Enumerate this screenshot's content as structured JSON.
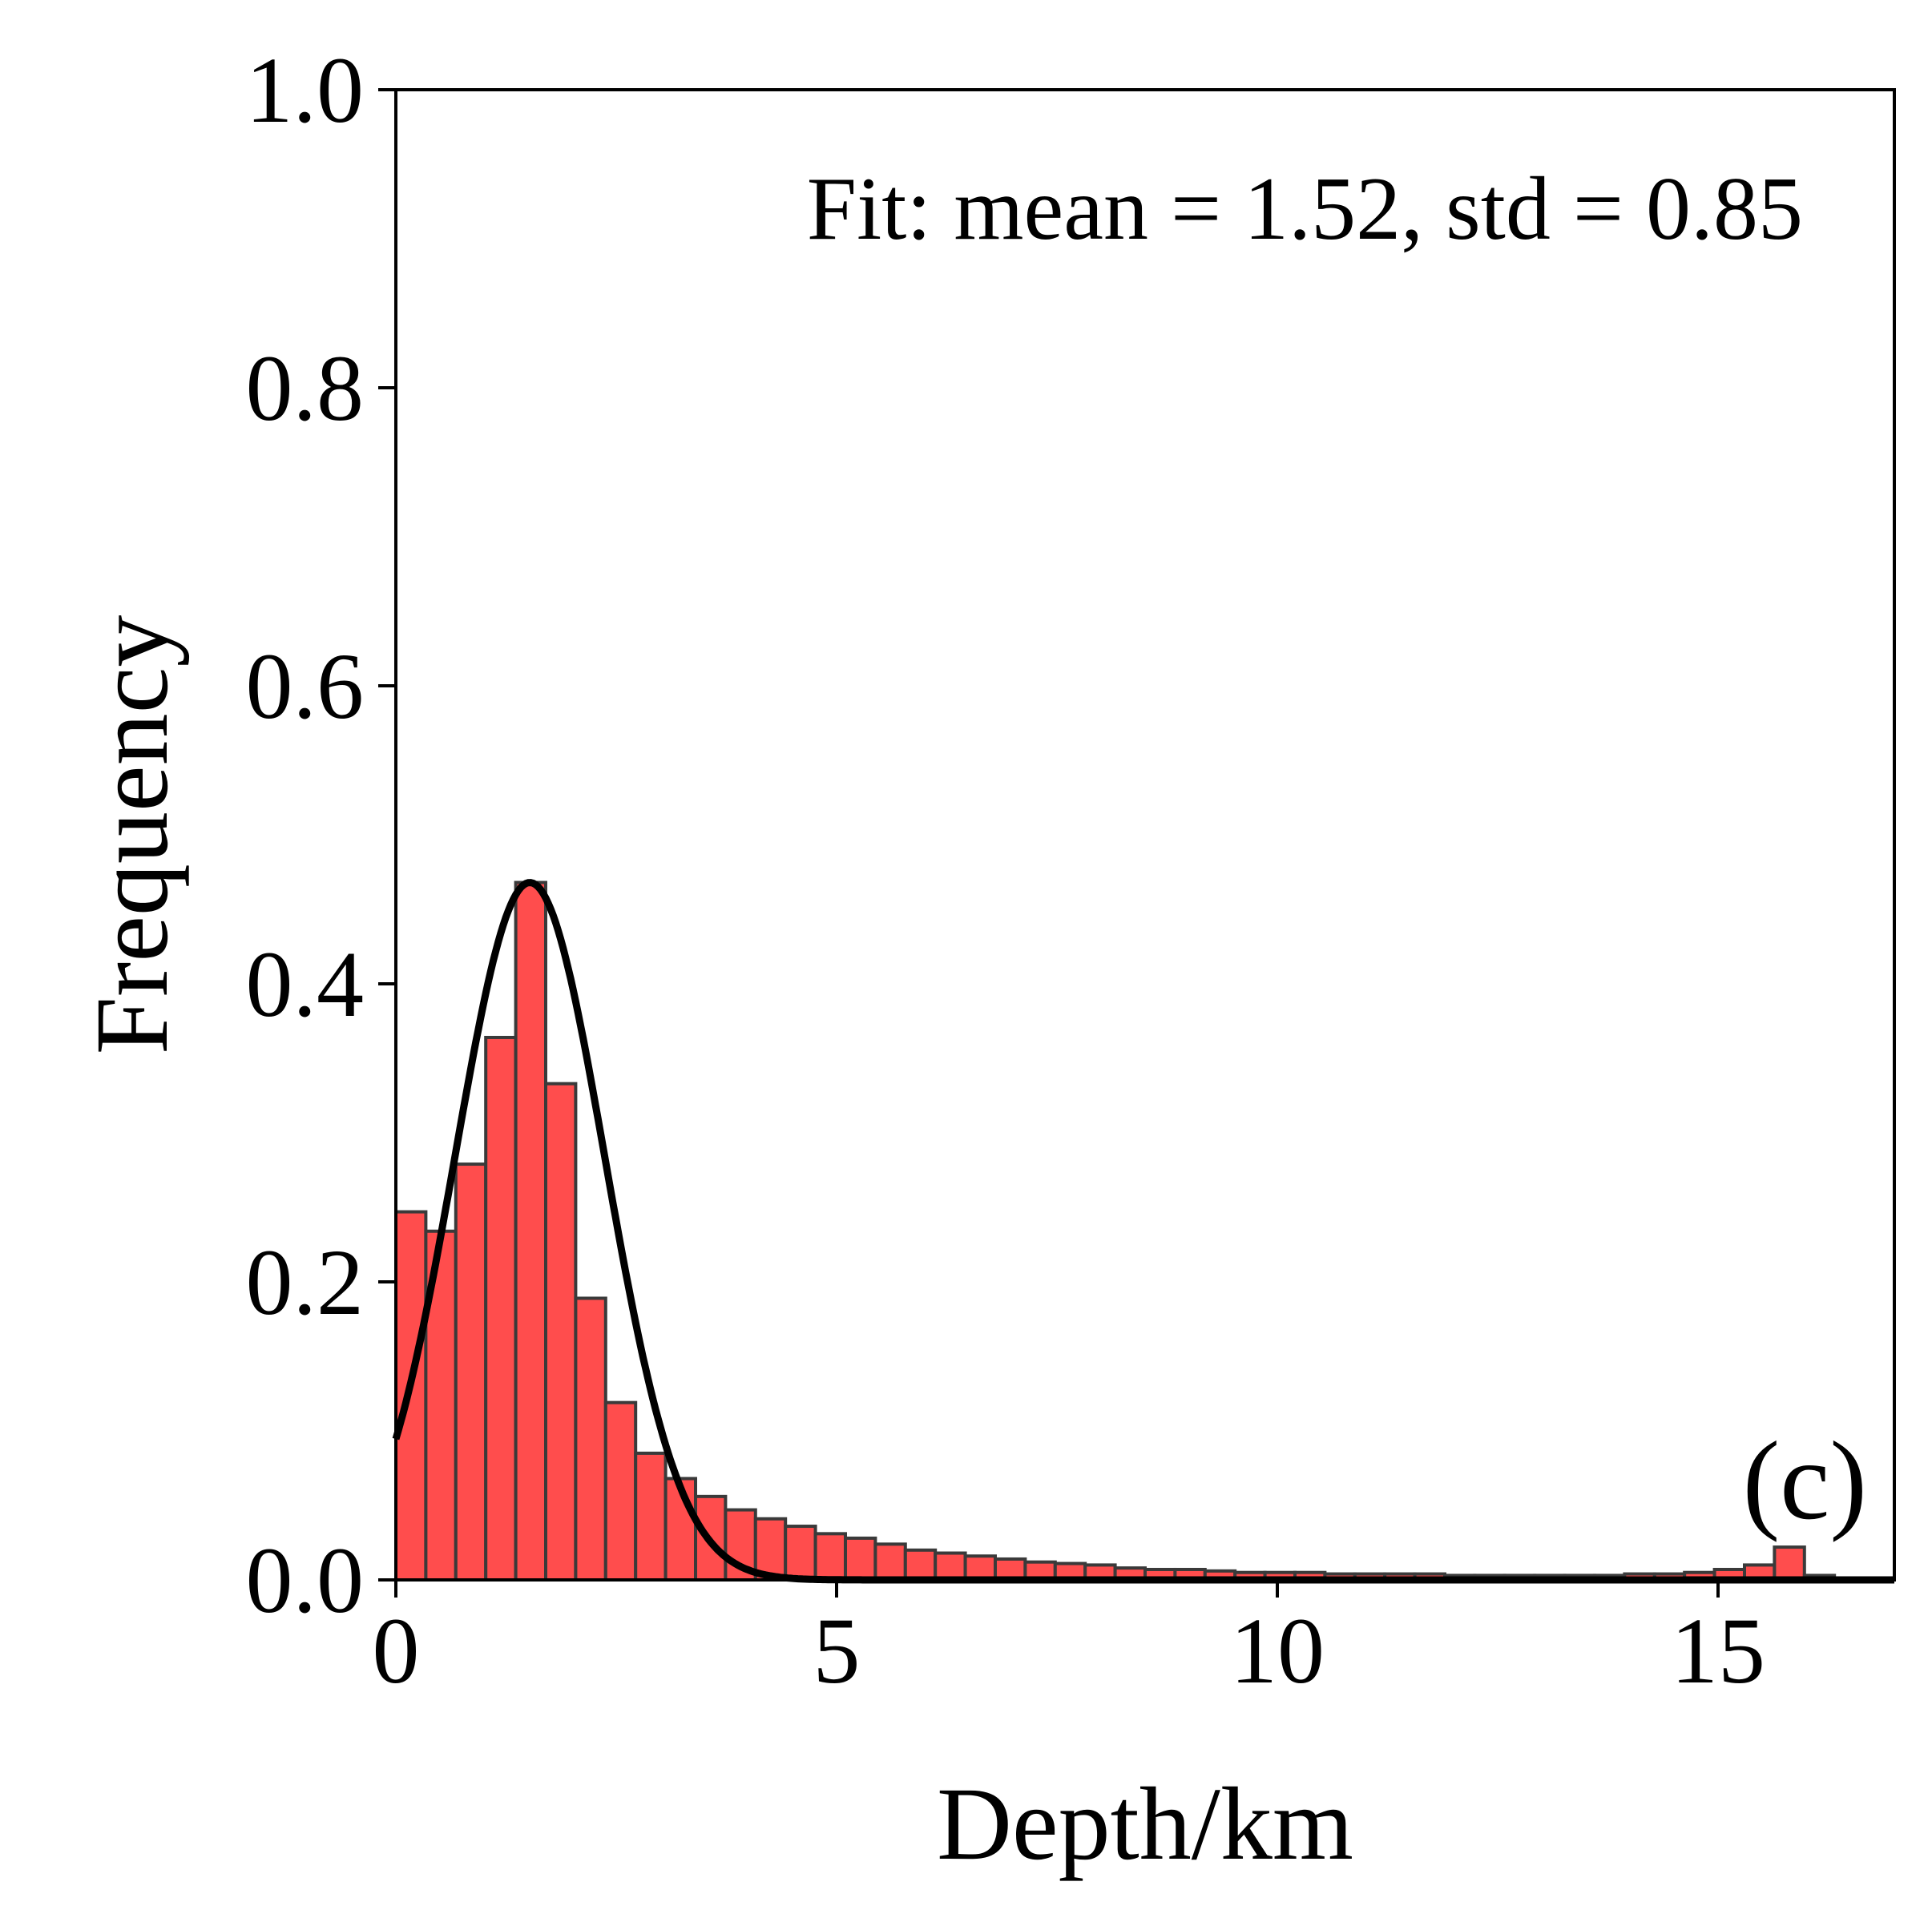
{
  "chart_data": {
    "type": "bar",
    "subtype": "histogram_with_fit",
    "xlabel": "Depth/km",
    "ylabel": "Frequency",
    "xlim": [
      0,
      17
    ],
    "ylim": [
      0,
      1.0
    ],
    "xticks": [
      0,
      5,
      10,
      15
    ],
    "yticks": [
      0.0,
      0.2,
      0.4,
      0.6,
      0.8,
      1.0
    ],
    "xtick_labels": [
      "0",
      "5",
      "10",
      "15"
    ],
    "ytick_labels": [
      "0.0",
      "0.2",
      "0.4",
      "0.6",
      "0.8",
      "1.0"
    ],
    "annotation": "Fit: mean = 1.52, std = 0.85",
    "panel_label": "(c)",
    "grid": false,
    "bar_color": "#ff4d4d",
    "bar_edge_color": "#3a3a3a",
    "fit_color": "#000000",
    "bin_width": 0.34,
    "bin_start": 0,
    "bin_values": [
      0.247,
      0.234,
      0.279,
      0.364,
      0.468,
      0.333,
      0.189,
      0.119,
      0.085,
      0.068,
      0.056,
      0.047,
      0.041,
      0.036,
      0.031,
      0.028,
      0.024,
      0.02,
      0.018,
      0.016,
      0.014,
      0.012,
      0.011,
      0.01,
      0.008,
      0.007,
      0.007,
      0.006,
      0.005,
      0.005,
      0.005,
      0.004,
      0.004,
      0.004,
      0.004,
      0.003,
      0.003,
      0.003,
      0.003,
      0.003,
      0.003,
      0.004,
      0.004,
      0.005,
      0.007,
      0.01,
      0.022,
      0.003
    ],
    "fit": {
      "distribution": "normal",
      "mean": 1.52,
      "std": 0.85,
      "peak": 0.468
    }
  }
}
